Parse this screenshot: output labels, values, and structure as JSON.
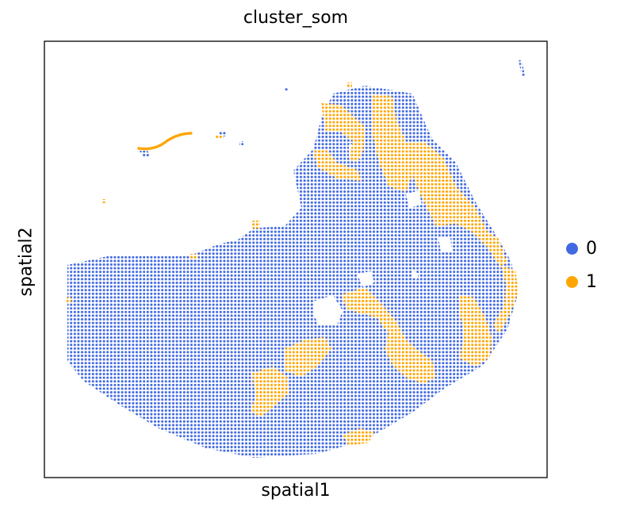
{
  "chart_data": {
    "type": "scatter",
    "title": "cluster_som",
    "xlabel": "spatial1",
    "ylabel": "spatial2",
    "grid": false,
    "ticks": "none",
    "legend_position": "right",
    "series": [
      {
        "name": "0",
        "color": "#4169e1"
      },
      {
        "name": "1",
        "color": "#ffa500"
      }
    ]
  }
}
